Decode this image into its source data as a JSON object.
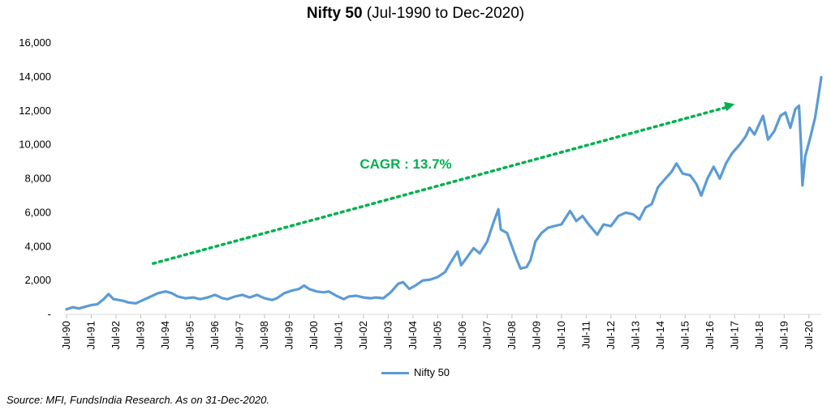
{
  "chart_data": {
    "type": "line",
    "title": "Nifty 50",
    "subtitle": "(Jul-1990 to Dec-2020)",
    "xlabel": "",
    "ylabel": "",
    "ylim": [
      0,
      16000
    ],
    "y_ticks": [
      "-",
      "2,000",
      "4,000",
      "6,000",
      "8,000",
      "10,000",
      "12,000",
      "14,000",
      "16,000"
    ],
    "x_ticks": [
      "Jul-90",
      "Jul-91",
      "Jul-92",
      "Jul-93",
      "Jul-94",
      "Jul-95",
      "Jul-96",
      "Jul-97",
      "Jul-98",
      "Jul-99",
      "Jul-00",
      "Jul-01",
      "Jul-02",
      "Jul-03",
      "Jul-04",
      "Jul-05",
      "Jul-06",
      "Jul-07",
      "Jul-08",
      "Jul-09",
      "Jul-10",
      "Jul-11",
      "Jul-12",
      "Jul-13",
      "Jul-14",
      "Jul-15",
      "Jul-16",
      "Jul-17",
      "Jul-18",
      "Jul-19",
      "Jul-20"
    ],
    "grid": false,
    "legend_position": "bottom",
    "series": [
      {
        "name": "Nifty 50",
        "color": "#5b9bd5",
        "points": [
          [
            1990.5,
            300
          ],
          [
            1990.75,
            420
          ],
          [
            1991.0,
            350
          ],
          [
            1991.25,
            450
          ],
          [
            1991.5,
            550
          ],
          [
            1991.75,
            600
          ],
          [
            1992.0,
            900
          ],
          [
            1992.2,
            1200
          ],
          [
            1992.4,
            900
          ],
          [
            1992.6,
            850
          ],
          [
            1992.8,
            800
          ],
          [
            1993.0,
            700
          ],
          [
            1993.3,
            650
          ],
          [
            1993.6,
            850
          ],
          [
            1993.9,
            1050
          ],
          [
            1994.2,
            1250
          ],
          [
            1994.5,
            1350
          ],
          [
            1994.75,
            1250
          ],
          [
            1995.0,
            1050
          ],
          [
            1995.3,
            950
          ],
          [
            1995.6,
            1000
          ],
          [
            1995.9,
            900
          ],
          [
            1996.2,
            1000
          ],
          [
            1996.5,
            1150
          ],
          [
            1996.8,
            950
          ],
          [
            1997.0,
            900
          ],
          [
            1997.3,
            1050
          ],
          [
            1997.6,
            1150
          ],
          [
            1997.9,
            1000
          ],
          [
            1998.2,
            1150
          ],
          [
            1998.5,
            950
          ],
          [
            1998.8,
            850
          ],
          [
            1999.0,
            950
          ],
          [
            1999.3,
            1250
          ],
          [
            1999.6,
            1400
          ],
          [
            1999.9,
            1500
          ],
          [
            2000.1,
            1700
          ],
          [
            2000.3,
            1500
          ],
          [
            2000.6,
            1350
          ],
          [
            2000.9,
            1300
          ],
          [
            2001.1,
            1350
          ],
          [
            2001.4,
            1100
          ],
          [
            2001.7,
            900
          ],
          [
            2001.9,
            1050
          ],
          [
            2002.2,
            1100
          ],
          [
            2002.5,
            1000
          ],
          [
            2002.8,
            950
          ],
          [
            2003.0,
            1000
          ],
          [
            2003.3,
            950
          ],
          [
            2003.6,
            1300
          ],
          [
            2003.9,
            1800
          ],
          [
            2004.1,
            1900
          ],
          [
            2004.35,
            1500
          ],
          [
            2004.6,
            1700
          ],
          [
            2004.9,
            2000
          ],
          [
            2005.2,
            2050
          ],
          [
            2005.5,
            2200
          ],
          [
            2005.8,
            2500
          ],
          [
            2006.0,
            3000
          ],
          [
            2006.3,
            3700
          ],
          [
            2006.45,
            2900
          ],
          [
            2006.7,
            3400
          ],
          [
            2006.95,
            3900
          ],
          [
            2007.2,
            3600
          ],
          [
            2007.5,
            4300
          ],
          [
            2007.75,
            5400
          ],
          [
            2007.95,
            6200
          ],
          [
            2008.05,
            5000
          ],
          [
            2008.3,
            4800
          ],
          [
            2008.5,
            4000
          ],
          [
            2008.7,
            3200
          ],
          [
            2008.85,
            2700
          ],
          [
            2009.1,
            2800
          ],
          [
            2009.25,
            3200
          ],
          [
            2009.45,
            4300
          ],
          [
            2009.7,
            4800
          ],
          [
            2009.95,
            5100
          ],
          [
            2010.2,
            5200
          ],
          [
            2010.5,
            5300
          ],
          [
            2010.85,
            6100
          ],
          [
            2011.1,
            5500
          ],
          [
            2011.35,
            5800
          ],
          [
            2011.6,
            5300
          ],
          [
            2011.95,
            4700
          ],
          [
            2012.2,
            5300
          ],
          [
            2012.5,
            5200
          ],
          [
            2012.8,
            5800
          ],
          [
            2013.1,
            6000
          ],
          [
            2013.4,
            5900
          ],
          [
            2013.65,
            5600
          ],
          [
            2013.9,
            6300
          ],
          [
            2014.15,
            6500
          ],
          [
            2014.4,
            7500
          ],
          [
            2014.7,
            8000
          ],
          [
            2014.95,
            8400
          ],
          [
            2015.15,
            8900
          ],
          [
            2015.4,
            8300
          ],
          [
            2015.7,
            8200
          ],
          [
            2015.95,
            7700
          ],
          [
            2016.15,
            7000
          ],
          [
            2016.4,
            8000
          ],
          [
            2016.65,
            8700
          ],
          [
            2016.9,
            8000
          ],
          [
            2017.15,
            8900
          ],
          [
            2017.4,
            9500
          ],
          [
            2017.7,
            10000
          ],
          [
            2017.95,
            10500
          ],
          [
            2018.1,
            11000
          ],
          [
            2018.3,
            10600
          ],
          [
            2018.55,
            11400
          ],
          [
            2018.65,
            11700
          ],
          [
            2018.85,
            10300
          ],
          [
            2019.1,
            10800
          ],
          [
            2019.35,
            11700
          ],
          [
            2019.55,
            11900
          ],
          [
            2019.75,
            11000
          ],
          [
            2019.95,
            12100
          ],
          [
            2020.1,
            12300
          ],
          [
            2020.18,
            10000
          ],
          [
            2020.24,
            7600
          ],
          [
            2020.35,
            9300
          ],
          [
            2020.55,
            10400
          ],
          [
            2020.75,
            11600
          ],
          [
            2020.9,
            13000
          ],
          [
            2021.0,
            13980
          ]
        ]
      }
    ],
    "annotation": {
      "label": "CAGR : 13.7%",
      "color": "#00b050",
      "arrow_from": [
        1994.0,
        3000
      ],
      "arrow_to": [
        2017.5,
        12400
      ]
    }
  },
  "legend": {
    "label": "Nifty 50"
  },
  "source": "Source: MFI, FundsIndia Research. As on 31-Dec-2020."
}
